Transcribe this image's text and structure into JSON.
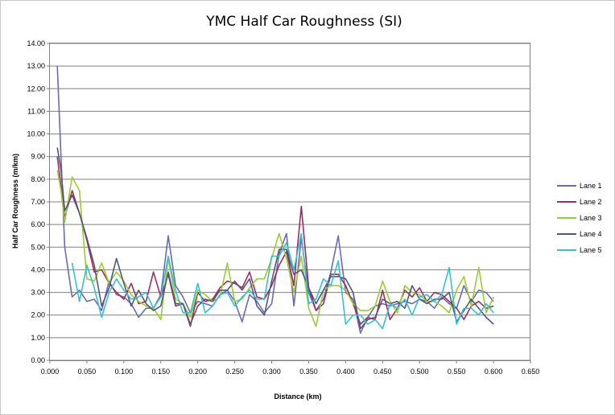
{
  "chart_data": {
    "type": "line",
    "title": "YMC Half Car Roughness (SI)",
    "xlabel": "Distance (km)",
    "ylabel": "Half Car Roughness (m/km)",
    "xlim": [
      0,
      0.65
    ],
    "ylim": [
      0,
      14
    ],
    "x_ticks": [
      "0.000",
      "0.050",
      "0.100",
      "0.150",
      "0.200",
      "0.250",
      "0.300",
      "0.350",
      "0.400",
      "0.450",
      "0.500",
      "0.550",
      "0.600",
      "0.650"
    ],
    "y_ticks": [
      "0.00",
      "1.00",
      "2.00",
      "3.00",
      "4.00",
      "5.00",
      "6.00",
      "7.00",
      "8.00",
      "9.00",
      "10.00",
      "11.00",
      "12.00",
      "13.00",
      "14.00"
    ],
    "grid": "horizontal",
    "legend": "right",
    "series": [
      {
        "name": "Lane 1",
        "color": "#6b6bb0",
        "points": [
          [
            0.01,
            13.0
          ],
          [
            0.015,
            9.0
          ],
          [
            0.02,
            5.0
          ],
          [
            0.03,
            2.8
          ],
          [
            0.04,
            3.1
          ],
          [
            0.05,
            2.6
          ],
          [
            0.06,
            2.7
          ],
          [
            0.07,
            2.2
          ],
          [
            0.08,
            3.5
          ],
          [
            0.09,
            2.9
          ],
          [
            0.1,
            2.8
          ],
          [
            0.11,
            2.5
          ],
          [
            0.12,
            1.9
          ],
          [
            0.13,
            2.3
          ],
          [
            0.14,
            2.3
          ],
          [
            0.15,
            2.9
          ],
          [
            0.16,
            5.5
          ],
          [
            0.17,
            3.3
          ],
          [
            0.18,
            2.8
          ],
          [
            0.19,
            2.1
          ],
          [
            0.2,
            2.6
          ],
          [
            0.21,
            2.5
          ],
          [
            0.22,
            2.4
          ],
          [
            0.23,
            2.9
          ],
          [
            0.24,
            3.1
          ],
          [
            0.25,
            2.6
          ],
          [
            0.26,
            1.7
          ],
          [
            0.27,
            2.9
          ],
          [
            0.28,
            2.6
          ],
          [
            0.29,
            2.1
          ],
          [
            0.3,
            2.5
          ],
          [
            0.31,
            4.7
          ],
          [
            0.32,
            5.6
          ],
          [
            0.33,
            2.4
          ],
          [
            0.34,
            5.4
          ],
          [
            0.35,
            3.0
          ],
          [
            0.36,
            2.2
          ],
          [
            0.37,
            2.7
          ],
          [
            0.38,
            3.9
          ],
          [
            0.39,
            5.5
          ],
          [
            0.4,
            3.0
          ],
          [
            0.41,
            2.7
          ],
          [
            0.42,
            1.2
          ],
          [
            0.43,
            1.9
          ],
          [
            0.44,
            2.4
          ],
          [
            0.45,
            2.5
          ],
          [
            0.46,
            2.4
          ],
          [
            0.47,
            2.5
          ],
          [
            0.48,
            2.6
          ],
          [
            0.49,
            2.5
          ],
          [
            0.5,
            2.7
          ],
          [
            0.51,
            2.6
          ],
          [
            0.52,
            2.3
          ],
          [
            0.53,
            2.8
          ],
          [
            0.54,
            2.5
          ],
          [
            0.55,
            2.3
          ],
          [
            0.56,
            3.3
          ],
          [
            0.57,
            2.6
          ],
          [
            0.58,
            3.1
          ],
          [
            0.59,
            3.0
          ],
          [
            0.6,
            2.6
          ]
        ]
      },
      {
        "name": "Lane 2",
        "color": "#9b2e5e",
        "points": [
          [
            0.01,
            9.0
          ],
          [
            0.02,
            6.3
          ],
          [
            0.03,
            7.5
          ],
          [
            0.04,
            6.5
          ],
          [
            0.05,
            5.3
          ],
          [
            0.06,
            3.9
          ],
          [
            0.07,
            4.0
          ],
          [
            0.08,
            3.4
          ],
          [
            0.09,
            3.0
          ],
          [
            0.1,
            2.7
          ],
          [
            0.11,
            3.4
          ],
          [
            0.12,
            2.5
          ],
          [
            0.13,
            2.6
          ],
          [
            0.14,
            3.9
          ],
          [
            0.15,
            2.8
          ],
          [
            0.16,
            3.8
          ],
          [
            0.17,
            2.4
          ],
          [
            0.18,
            2.5
          ],
          [
            0.19,
            1.5
          ],
          [
            0.2,
            3.0
          ],
          [
            0.21,
            2.6
          ],
          [
            0.22,
            2.7
          ],
          [
            0.23,
            3.2
          ],
          [
            0.24,
            3.5
          ],
          [
            0.25,
            3.4
          ],
          [
            0.26,
            3.2
          ],
          [
            0.27,
            3.9
          ],
          [
            0.28,
            2.8
          ],
          [
            0.29,
            2.7
          ],
          [
            0.3,
            3.3
          ],
          [
            0.31,
            4.2
          ],
          [
            0.32,
            4.8
          ],
          [
            0.33,
            3.3
          ],
          [
            0.34,
            6.8
          ],
          [
            0.35,
            3.2
          ],
          [
            0.36,
            2.2
          ],
          [
            0.37,
            2.5
          ],
          [
            0.38,
            3.8
          ],
          [
            0.39,
            3.8
          ],
          [
            0.4,
            3.3
          ],
          [
            0.41,
            2.5
          ],
          [
            0.42,
            1.6
          ],
          [
            0.43,
            1.9
          ],
          [
            0.44,
            1.8
          ],
          [
            0.45,
            3.1
          ],
          [
            0.46,
            1.8
          ],
          [
            0.47,
            2.3
          ],
          [
            0.48,
            3.1
          ],
          [
            0.49,
            2.8
          ],
          [
            0.5,
            3.2
          ],
          [
            0.51,
            2.6
          ],
          [
            0.52,
            3.0
          ],
          [
            0.53,
            2.9
          ],
          [
            0.54,
            2.6
          ],
          [
            0.55,
            2.3
          ],
          [
            0.56,
            1.8
          ],
          [
            0.57,
            2.4
          ],
          [
            0.58,
            2.6
          ],
          [
            0.59,
            2.3
          ],
          [
            0.6,
            2.4
          ]
        ]
      },
      {
        "name": "Lane 3",
        "color": "#9acd32",
        "points": [
          [
            0.01,
            8.4
          ],
          [
            0.015,
            7.5
          ],
          [
            0.02,
            6.1
          ],
          [
            0.03,
            8.1
          ],
          [
            0.04,
            7.5
          ],
          [
            0.05,
            3.6
          ],
          [
            0.06,
            3.5
          ],
          [
            0.07,
            4.3
          ],
          [
            0.08,
            3.4
          ],
          [
            0.09,
            3.9
          ],
          [
            0.1,
            3.5
          ],
          [
            0.11,
            2.9
          ],
          [
            0.12,
            2.6
          ],
          [
            0.13,
            2.4
          ],
          [
            0.14,
            2.3
          ],
          [
            0.15,
            1.8
          ],
          [
            0.16,
            4.5
          ],
          [
            0.17,
            2.7
          ],
          [
            0.18,
            2.5
          ],
          [
            0.19,
            1.9
          ],
          [
            0.2,
            3.1
          ],
          [
            0.21,
            2.9
          ],
          [
            0.22,
            2.6
          ],
          [
            0.23,
            2.8
          ],
          [
            0.24,
            4.3
          ],
          [
            0.25,
            2.6
          ],
          [
            0.26,
            2.7
          ],
          [
            0.27,
            3.2
          ],
          [
            0.28,
            3.6
          ],
          [
            0.29,
            3.6
          ],
          [
            0.3,
            4.5
          ],
          [
            0.31,
            5.6
          ],
          [
            0.32,
            4.5
          ],
          [
            0.33,
            3.0
          ],
          [
            0.34,
            4.6
          ],
          [
            0.35,
            2.3
          ],
          [
            0.36,
            1.5
          ],
          [
            0.37,
            3.1
          ],
          [
            0.38,
            3.3
          ],
          [
            0.39,
            3.3
          ],
          [
            0.4,
            3.1
          ],
          [
            0.41,
            2.5
          ],
          [
            0.42,
            2.2
          ],
          [
            0.43,
            2.2
          ],
          [
            0.44,
            2.4
          ],
          [
            0.45,
            3.5
          ],
          [
            0.46,
            2.6
          ],
          [
            0.47,
            2.1
          ],
          [
            0.48,
            3.3
          ],
          [
            0.49,
            3.0
          ],
          [
            0.5,
            2.9
          ],
          [
            0.51,
            2.6
          ],
          [
            0.52,
            2.6
          ],
          [
            0.53,
            2.4
          ],
          [
            0.54,
            2.1
          ],
          [
            0.55,
            3.1
          ],
          [
            0.56,
            3.7
          ],
          [
            0.57,
            2.4
          ],
          [
            0.58,
            4.1
          ],
          [
            0.59,
            2.1
          ],
          [
            0.6,
            2.8
          ]
        ]
      },
      {
        "name": "Lane 4",
        "color": "#52567a",
        "points": [
          [
            0.01,
            9.4
          ],
          [
            0.015,
            8.4
          ],
          [
            0.02,
            6.6
          ],
          [
            0.03,
            7.3
          ],
          [
            0.04,
            6.5
          ],
          [
            0.05,
            5.4
          ],
          [
            0.06,
            4.2
          ],
          [
            0.07,
            2.4
          ],
          [
            0.08,
            3.2
          ],
          [
            0.09,
            4.5
          ],
          [
            0.1,
            3.4
          ],
          [
            0.11,
            2.4
          ],
          [
            0.12,
            3.1
          ],
          [
            0.13,
            2.5
          ],
          [
            0.14,
            2.2
          ],
          [
            0.15,
            2.4
          ],
          [
            0.16,
            3.9
          ],
          [
            0.17,
            2.5
          ],
          [
            0.18,
            2.5
          ],
          [
            0.19,
            1.6
          ],
          [
            0.2,
            2.4
          ],
          [
            0.21,
            2.7
          ],
          [
            0.22,
            2.6
          ],
          [
            0.23,
            3.1
          ],
          [
            0.24,
            3.1
          ],
          [
            0.25,
            3.5
          ],
          [
            0.26,
            3.1
          ],
          [
            0.27,
            3.6
          ],
          [
            0.28,
            2.4
          ],
          [
            0.29,
            2.0
          ],
          [
            0.3,
            3.5
          ],
          [
            0.31,
            4.9
          ],
          [
            0.32,
            4.9
          ],
          [
            0.33,
            3.8
          ],
          [
            0.34,
            4.0
          ],
          [
            0.35,
            3.2
          ],
          [
            0.36,
            2.5
          ],
          [
            0.37,
            3.1
          ],
          [
            0.38,
            3.7
          ],
          [
            0.39,
            3.7
          ],
          [
            0.4,
            3.6
          ],
          [
            0.41,
            3.0
          ],
          [
            0.42,
            1.4
          ],
          [
            0.43,
            1.8
          ],
          [
            0.44,
            1.9
          ],
          [
            0.45,
            2.7
          ],
          [
            0.46,
            2.5
          ],
          [
            0.47,
            2.6
          ],
          [
            0.48,
            2.3
          ],
          [
            0.49,
            3.3
          ],
          [
            0.5,
            2.7
          ],
          [
            0.51,
            2.5
          ],
          [
            0.52,
            2.7
          ],
          [
            0.53,
            2.7
          ],
          [
            0.54,
            3.0
          ],
          [
            0.55,
            1.7
          ],
          [
            0.56,
            2.2
          ],
          [
            0.57,
            2.7
          ],
          [
            0.58,
            2.3
          ],
          [
            0.59,
            1.9
          ],
          [
            0.6,
            1.6
          ]
        ]
      },
      {
        "name": "Lane 5",
        "color": "#36c0cf",
        "points": [
          [
            0.03,
            4.3
          ],
          [
            0.04,
            2.6
          ],
          [
            0.05,
            4.2
          ],
          [
            0.06,
            3.2
          ],
          [
            0.07,
            1.9
          ],
          [
            0.08,
            3.0
          ],
          [
            0.09,
            3.6
          ],
          [
            0.1,
            3.1
          ],
          [
            0.11,
            2.7
          ],
          [
            0.12,
            2.8
          ],
          [
            0.13,
            3.0
          ],
          [
            0.14,
            2.3
          ],
          [
            0.15,
            2.8
          ],
          [
            0.16,
            4.6
          ],
          [
            0.17,
            3.1
          ],
          [
            0.18,
            2.1
          ],
          [
            0.19,
            2.1
          ],
          [
            0.2,
            3.4
          ],
          [
            0.21,
            2.1
          ],
          [
            0.22,
            2.4
          ],
          [
            0.23,
            2.9
          ],
          [
            0.24,
            3.0
          ],
          [
            0.25,
            2.4
          ],
          [
            0.26,
            2.8
          ],
          [
            0.27,
            3.1
          ],
          [
            0.28,
            2.7
          ],
          [
            0.29,
            2.7
          ],
          [
            0.3,
            4.6
          ],
          [
            0.31,
            4.6
          ],
          [
            0.32,
            5.2
          ],
          [
            0.33,
            4.0
          ],
          [
            0.34,
            5.6
          ],
          [
            0.35,
            2.5
          ],
          [
            0.36,
            2.7
          ],
          [
            0.37,
            3.6
          ],
          [
            0.38,
            3.3
          ],
          [
            0.39,
            4.4
          ],
          [
            0.4,
            1.6
          ],
          [
            0.41,
            2.0
          ],
          [
            0.42,
            2.0
          ],
          [
            0.43,
            1.6
          ],
          [
            0.44,
            1.8
          ],
          [
            0.45,
            1.4
          ],
          [
            0.46,
            2.5
          ],
          [
            0.47,
            2.3
          ],
          [
            0.48,
            2.7
          ],
          [
            0.49,
            2.0
          ],
          [
            0.5,
            2.8
          ],
          [
            0.51,
            2.9
          ],
          [
            0.52,
            2.6
          ],
          [
            0.53,
            2.9
          ],
          [
            0.54,
            4.1
          ],
          [
            0.55,
            1.6
          ],
          [
            0.56,
            2.3
          ],
          [
            0.57,
            2.3
          ],
          [
            0.58,
            2.0
          ],
          [
            0.59,
            2.5
          ],
          [
            0.6,
            2.1
          ]
        ]
      }
    ]
  }
}
